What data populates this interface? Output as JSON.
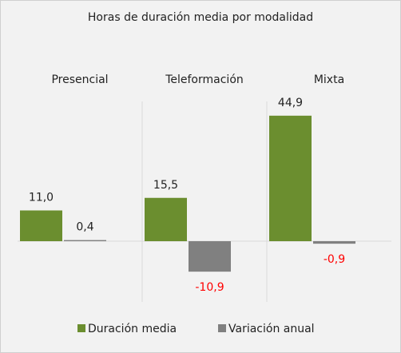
{
  "chart_data": {
    "type": "bar",
    "title": "Horas de duración media por modalidad",
    "categories": [
      "Presencial",
      "Teleformación",
      "Mixta"
    ],
    "series": [
      {
        "name": "Duración media",
        "color": "#6b8e2f",
        "values": [
          11.0,
          15.5,
          44.9
        ],
        "value_labels": [
          "11,0",
          "15,5",
          "44,9"
        ]
      },
      {
        "name": "Variación anual",
        "color": "#808080",
        "values": [
          0.4,
          -10.9,
          -0.9
        ],
        "value_labels": [
          "0,4",
          "-10,9",
          "-0,9"
        ]
      }
    ],
    "ylim": [
      -20,
      50
    ],
    "negative_label_color": "#ff0000",
    "legend": "bottom"
  }
}
